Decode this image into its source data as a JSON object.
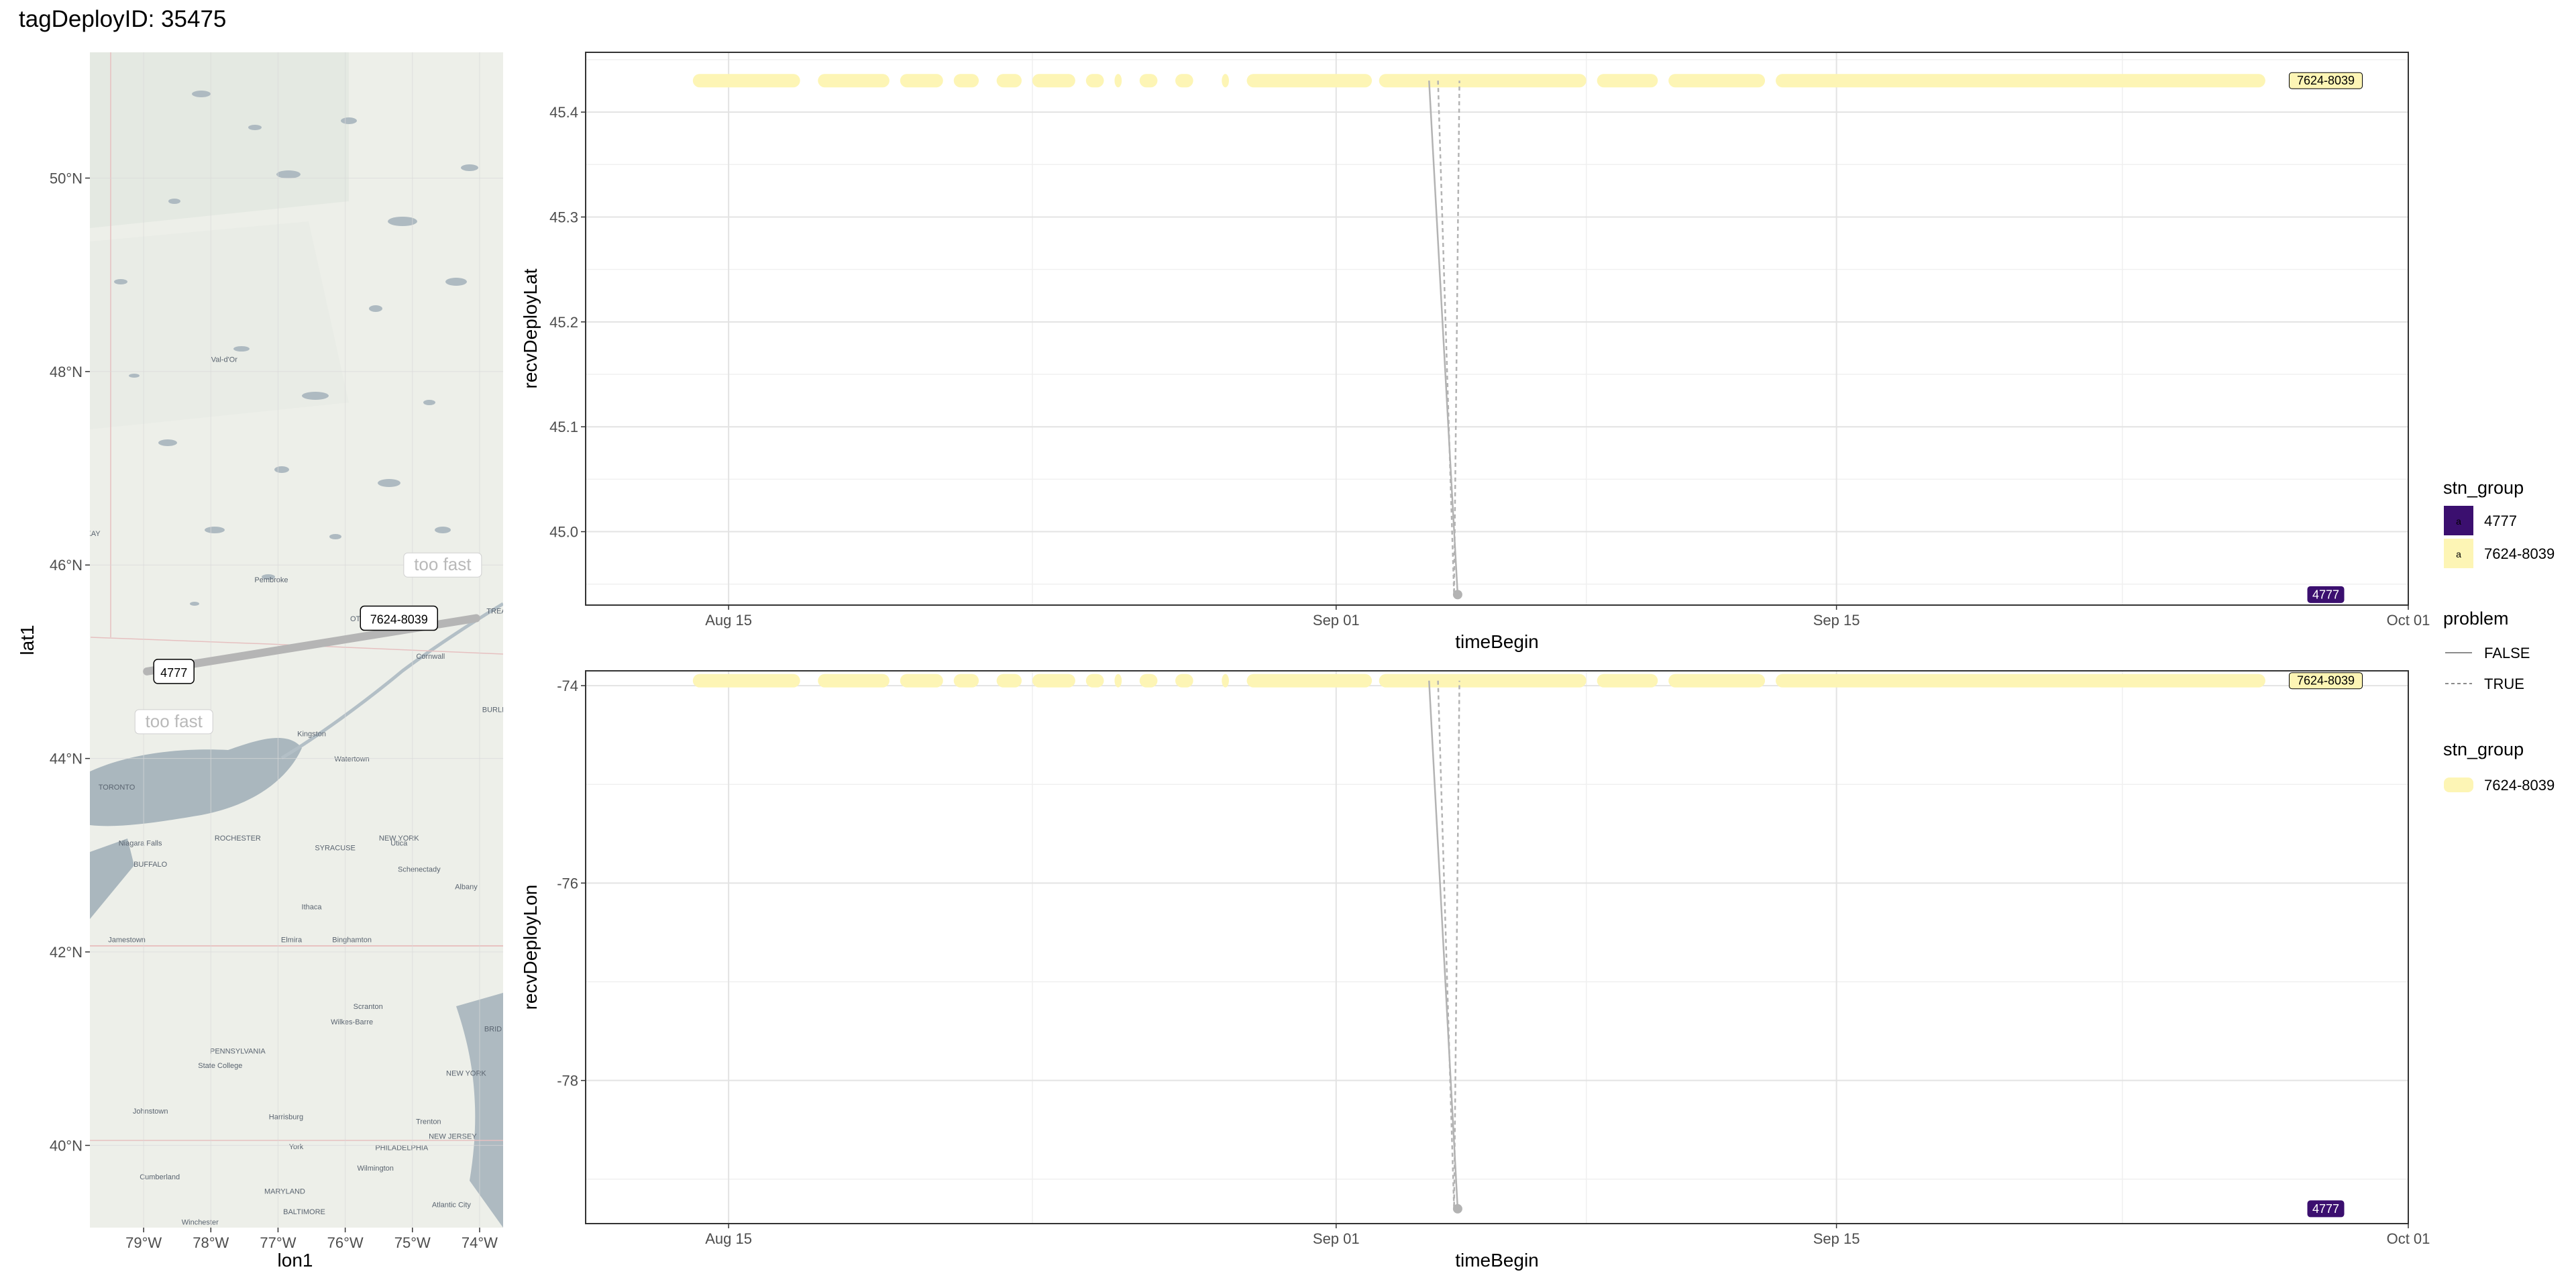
{
  "page_title": "tagDeployID: 35475",
  "map": {
    "xlabel": "lon1",
    "ylabel": "lat1",
    "x_ticks": [
      "79°W",
      "78°W",
      "77°W",
      "76°W",
      "75°W",
      "74°W"
    ],
    "x_tick_values": [
      -79,
      -78,
      -77,
      -76,
      -75,
      -74
    ],
    "y_ticks": [
      "40°N",
      "42°N",
      "44°N",
      "46°N",
      "48°N",
      "50°N"
    ],
    "y_tick_values": [
      40,
      42,
      44,
      46,
      48,
      50
    ],
    "xlim": [
      -79.8,
      -73.65
    ],
    "ylim": [
      39.15,
      51.3
    ],
    "track": [
      {
        "lon": -78.95,
        "lat": 44.9,
        "problem": "FALSE"
      },
      {
        "lon": -74.05,
        "lat": 45.45,
        "problem": "FALSE"
      }
    ],
    "station_labels": [
      {
        "text": "4777",
        "lon": -78.55,
        "lat": 44.9
      },
      {
        "text": "7624-8039",
        "lon": -75.2,
        "lat": 45.45
      }
    ],
    "warning_labels": [
      {
        "text": "too fast",
        "lon": -74.55,
        "lat": 46.0
      },
      {
        "text": "too fast",
        "lon": -78.55,
        "lat": 44.38
      }
    ],
    "place_names": [
      {
        "text": "Val-d'Or",
        "lon": -77.8,
        "lat": 48.1
      },
      {
        "text": "Pembroke",
        "lon": -77.1,
        "lat": 45.82
      },
      {
        "text": "OTTAWA",
        "lon": -75.7,
        "lat": 45.42
      },
      {
        "text": "Cornwall",
        "lon": -74.73,
        "lat": 45.03
      },
      {
        "text": "Kingston",
        "lon": -76.5,
        "lat": 44.23
      },
      {
        "text": "Watertown",
        "lon": -75.9,
        "lat": 43.97
      },
      {
        "text": "TORONTO",
        "lon": -79.4,
        "lat": 43.68
      },
      {
        "text": "ROCHESTER",
        "lon": -77.6,
        "lat": 43.15
      },
      {
        "text": "SYRACUSE",
        "lon": -76.15,
        "lat": 43.05
      },
      {
        "text": "NEW YORK",
        "lon": -75.2,
        "lat": 43.15
      },
      {
        "text": "Utica",
        "lon": -75.2,
        "lat": 43.1
      },
      {
        "text": "Niagara Falls",
        "lon": -79.05,
        "lat": 43.1
      },
      {
        "text": "BUFFALO",
        "lon": -78.9,
        "lat": 42.88
      },
      {
        "text": "Schenectady",
        "lon": -74.9,
        "lat": 42.83
      },
      {
        "text": "Albany",
        "lon": -74.2,
        "lat": 42.65
      },
      {
        "text": "Ithaca",
        "lon": -76.5,
        "lat": 42.44
      },
      {
        "text": "Elmira",
        "lon": -76.8,
        "lat": 42.1
      },
      {
        "text": "Binghamton",
        "lon": -75.9,
        "lat": 42.1
      },
      {
        "text": "Jamestown",
        "lon": -79.25,
        "lat": 42.1
      },
      {
        "text": "Scranton",
        "lon": -75.66,
        "lat": 41.41
      },
      {
        "text": "Wilkes-Barre",
        "lon": -75.9,
        "lat": 41.25
      },
      {
        "text": "PENNSYLVANIA",
        "lon": -77.6,
        "lat": 40.95
      },
      {
        "text": "State College",
        "lon": -77.86,
        "lat": 40.8
      },
      {
        "text": "NEW YORK",
        "lon": -74.2,
        "lat": 40.72
      },
      {
        "text": "Johnstown",
        "lon": -78.9,
        "lat": 40.33
      },
      {
        "text": "Harrisburg",
        "lon": -76.88,
        "lat": 40.27
      },
      {
        "text": "York",
        "lon": -76.73,
        "lat": 39.96
      },
      {
        "text": "PHILADELPHIA",
        "lon": -75.16,
        "lat": 39.95
      },
      {
        "text": "NEW JERSEY",
        "lon": -74.4,
        "lat": 40.07
      },
      {
        "text": "Trenton",
        "lon": -74.76,
        "lat": 40.22
      },
      {
        "text": "Wilmington",
        "lon": -75.55,
        "lat": 39.74
      },
      {
        "text": "Cumberland",
        "lon": -78.76,
        "lat": 39.65
      },
      {
        "text": "MARYLAND",
        "lon": -76.9,
        "lat": 39.5
      },
      {
        "text": "BALTIMORE",
        "lon": -76.61,
        "lat": 39.29
      },
      {
        "text": "Atlantic City",
        "lon": -74.42,
        "lat": 39.36
      },
      {
        "text": "Winchester",
        "lon": -78.16,
        "lat": 39.18
      },
      {
        "text": "BURLI",
        "lon": -73.8,
        "lat": 44.48
      },
      {
        "text": "BRID",
        "lon": -73.8,
        "lat": 41.18
      },
      {
        "text": "TREA",
        "lon": -73.75,
        "lat": 45.5
      },
      {
        "text": "KAY",
        "lon": -79.75,
        "lat": 46.3
      }
    ]
  },
  "chart_data": [
    {
      "type": "scatter",
      "xlabel": "timeBegin",
      "ylabel": "recvDeployLat",
      "x_ticks": [
        "Aug 15",
        "Sep 01",
        "Sep 15",
        "Oct 01"
      ],
      "x_tick_dates": [
        "2019-08-15",
        "2019-09-01",
        "2019-09-15",
        "2019-10-01"
      ],
      "xlim": [
        "2019-08-11",
        "2019-10-01"
      ],
      "y_ticks": [
        "45.0",
        "45.1",
        "45.2",
        "45.3",
        "45.4"
      ],
      "y_tick_values": [
        45.0,
        45.1,
        45.2,
        45.3,
        45.4
      ],
      "ylim": [
        44.93,
        45.457
      ],
      "series": [
        {
          "name": "7624-8039",
          "color": "#fdf5b5",
          "y": 45.43,
          "date_ranges": [
            [
              "2019-08-14",
              "2019-08-17"
            ],
            [
              "2019-08-17.5",
              "2019-08-19.5"
            ],
            [
              "2019-08-19.8",
              "2019-08-21"
            ],
            [
              "2019-08-21.3",
              "2019-08-22"
            ],
            [
              "2019-08-22.5",
              "2019-08-23.2"
            ],
            [
              "2019-08-23.5",
              "2019-08-24.7"
            ],
            [
              "2019-08-25",
              "2019-08-25.5"
            ],
            [
              "2019-08-25.8",
              "2019-08-26"
            ],
            [
              "2019-08-26.5",
              "2019-08-27"
            ],
            [
              "2019-08-27.5",
              "2019-08-28"
            ],
            [
              "2019-08-28.8",
              "2019-08-29"
            ],
            [
              "2019-08-29.5",
              "2019-09-02"
            ],
            [
              "2019-09-02.2",
              "2019-09-08"
            ],
            [
              "2019-09-08.3",
              "2019-09-10"
            ],
            [
              "2019-09-10.3",
              "2019-09-13"
            ],
            [
              "2019-09-13.3",
              "2019-09-27"
            ]
          ]
        },
        {
          "name": "4777",
          "color": "#3b0f6f",
          "date": "2019-09-04.4",
          "y": 44.94
        }
      ],
      "lines": [
        {
          "problem": "FALSE",
          "points": [
            [
              "2019-09-03.6",
              45.43
            ],
            [
              "2019-09-04.4",
              44.94
            ]
          ]
        },
        {
          "problem": "TRUE",
          "points": [
            [
              "2019-09-03.85",
              45.43
            ],
            [
              "2019-09-04.3",
              44.94
            ],
            [
              "2019-09-04.45",
              45.43
            ]
          ]
        }
      ],
      "label_tags": [
        {
          "text": "7624-8039",
          "y": 45.43
        },
        {
          "text": "4777",
          "y": 44.94
        }
      ]
    },
    {
      "type": "scatter",
      "xlabel": "timeBegin",
      "ylabel": "recvDeployLon",
      "x_ticks": [
        "Aug 15",
        "Sep 01",
        "Sep 15",
        "Oct 01"
      ],
      "x_tick_dates": [
        "2019-08-15",
        "2019-09-01",
        "2019-09-15",
        "2019-10-01"
      ],
      "xlim": [
        "2019-08-11",
        "2019-10-01"
      ],
      "y_ticks": [
        "-74",
        "-76",
        "-78"
      ],
      "y_tick_values": [
        -74,
        -76,
        -78
      ],
      "ylim": [
        -79.45,
        -73.85
      ],
      "series": [
        {
          "name": "7624-8039",
          "color": "#fdf5b5",
          "y": -73.95,
          "date_ranges": [
            [
              "2019-08-14",
              "2019-08-17"
            ],
            [
              "2019-08-17.5",
              "2019-08-19.5"
            ],
            [
              "2019-08-19.8",
              "2019-08-21"
            ],
            [
              "2019-08-21.3",
              "2019-08-22"
            ],
            [
              "2019-08-22.5",
              "2019-08-23.2"
            ],
            [
              "2019-08-23.5",
              "2019-08-24.7"
            ],
            [
              "2019-08-25",
              "2019-08-25.5"
            ],
            [
              "2019-08-25.8",
              "2019-08-26"
            ],
            [
              "2019-08-26.5",
              "2019-08-27"
            ],
            [
              "2019-08-27.5",
              "2019-08-28"
            ],
            [
              "2019-08-28.8",
              "2019-08-29"
            ],
            [
              "2019-08-29.5",
              "2019-09-02"
            ],
            [
              "2019-09-02.2",
              "2019-09-08"
            ],
            [
              "2019-09-08.3",
              "2019-09-10"
            ],
            [
              "2019-09-10.3",
              "2019-09-13"
            ],
            [
              "2019-09-13.3",
              "2019-09-27"
            ]
          ]
        },
        {
          "name": "4777",
          "color": "#3b0f6f",
          "date": "2019-09-04.4",
          "y": -79.3
        }
      ],
      "lines": [
        {
          "problem": "FALSE",
          "points": [
            [
              "2019-09-03.6",
              -73.95
            ],
            [
              "2019-09-04.4",
              -79.3
            ]
          ]
        },
        {
          "problem": "TRUE",
          "points": [
            [
              "2019-09-03.85",
              -73.95
            ],
            [
              "2019-09-04.3",
              -79.3
            ],
            [
              "2019-09-04.45",
              -73.95
            ]
          ]
        }
      ],
      "label_tags": [
        {
          "text": "7624-8039",
          "y": -73.95
        },
        {
          "text": "4777",
          "y": -79.3
        }
      ]
    }
  ],
  "legend": {
    "group1_title": "stn_group",
    "group1_items": [
      {
        "label": "4777",
        "color": "#3b0f6f",
        "glyph": "a"
      },
      {
        "label": "7624-8039",
        "color": "#fdf5b5",
        "glyph": "a"
      }
    ],
    "group2_title": "problem",
    "group2_items": [
      {
        "label": "FALSE",
        "style": "solid"
      },
      {
        "label": "TRUE",
        "style": "dashed"
      }
    ],
    "group3_title": "stn_group",
    "group3_items": [
      {
        "label": "7624-8039",
        "color": "#fdf5b5"
      }
    ]
  }
}
